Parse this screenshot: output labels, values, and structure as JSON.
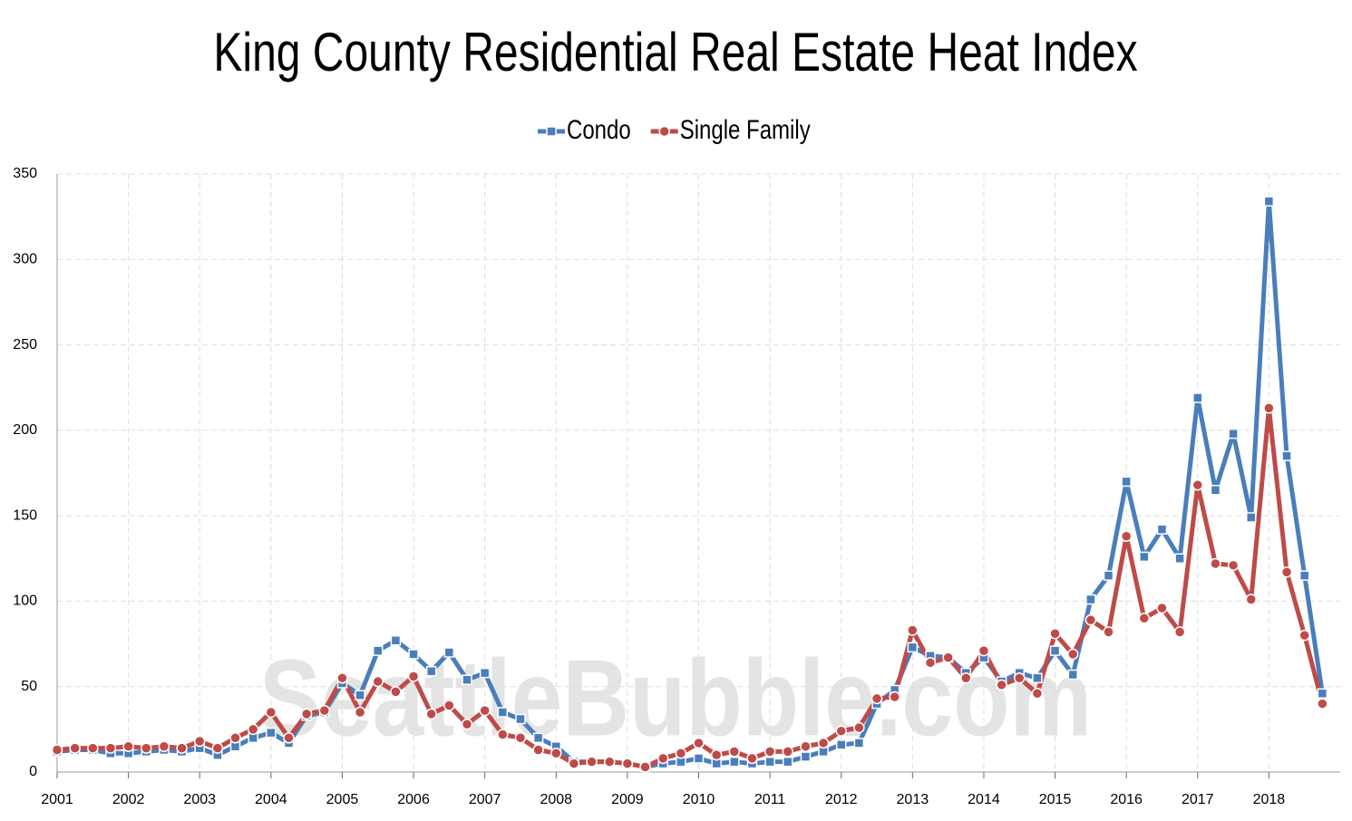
{
  "chart_data": {
    "type": "line",
    "title": "King County Residential Real Estate Heat Index",
    "watermark": "SeattleBubble.com",
    "x": [
      2001,
      2001.25,
      2001.5,
      2001.75,
      2002,
      2002.25,
      2002.5,
      2002.75,
      2003,
      2003.25,
      2003.5,
      2003.75,
      2004,
      2004.25,
      2004.5,
      2004.75,
      2005,
      2005.25,
      2005.5,
      2005.75,
      2006,
      2006.25,
      2006.5,
      2006.75,
      2007,
      2007.25,
      2007.5,
      2007.75,
      2008,
      2008.25,
      2008.5,
      2008.75,
      2009,
      2009.25,
      2009.5,
      2009.75,
      2010,
      2010.25,
      2010.5,
      2010.75,
      2011,
      2011.25,
      2011.5,
      2011.75,
      2012,
      2012.25,
      2012.5,
      2012.75,
      2013,
      2013.25,
      2013.5,
      2013.75,
      2014,
      2014.25,
      2014.5,
      2014.75,
      2015,
      2015.25,
      2015.5,
      2015.75,
      2016,
      2016.25,
      2016.5,
      2016.75,
      2017,
      2017.25,
      2017.5,
      2017.75,
      2018,
      2018.25,
      2018.5,
      2018.75
    ],
    "series": [
      {
        "name": "Condo",
        "color": "#4a7ebb",
        "marker": "square",
        "values": [
          12,
          13,
          13,
          11,
          11,
          12,
          13,
          12,
          14,
          10,
          15,
          20,
          23,
          17,
          33,
          35,
          52,
          45,
          71,
          77,
          69,
          59,
          70,
          54,
          58,
          35,
          31,
          20,
          15,
          6,
          6,
          6,
          5,
          3,
          5,
          6,
          8,
          5,
          6,
          5,
          6,
          6,
          9,
          12,
          16,
          17,
          40,
          48,
          73,
          68,
          67,
          58,
          67,
          53,
          58,
          55,
          71,
          57,
          101,
          115,
          170,
          126,
          142,
          125,
          219,
          165,
          198,
          149,
          334,
          185,
          115,
          46
        ]
      },
      {
        "name": "Single Family",
        "color": "#be4b48",
        "marker": "circle",
        "values": [
          13,
          14,
          14,
          14,
          15,
          14,
          15,
          14,
          18,
          14,
          20,
          25,
          35,
          20,
          34,
          36,
          55,
          35,
          53,
          47,
          56,
          34,
          39,
          28,
          36,
          22,
          20,
          13,
          11,
          5,
          6,
          6,
          5,
          3,
          8,
          11,
          17,
          10,
          12,
          8,
          12,
          12,
          15,
          17,
          24,
          26,
          43,
          44,
          83,
          64,
          67,
          55,
          71,
          51,
          55,
          46,
          81,
          69,
          89,
          82,
          138,
          90,
          96,
          82,
          168,
          122,
          121,
          101,
          213,
          117,
          80,
          40
        ]
      }
    ],
    "xlim": [
      2001,
      2019
    ],
    "xticks": [
      2001,
      2002,
      2003,
      2004,
      2005,
      2006,
      2007,
      2008,
      2009,
      2010,
      2011,
      2012,
      2013,
      2014,
      2015,
      2016,
      2017,
      2018
    ],
    "ylim": [
      0,
      350
    ],
    "yticks": [
      0,
      50,
      100,
      150,
      200,
      250,
      300,
      350
    ],
    "grid": true,
    "legend": "top"
  }
}
